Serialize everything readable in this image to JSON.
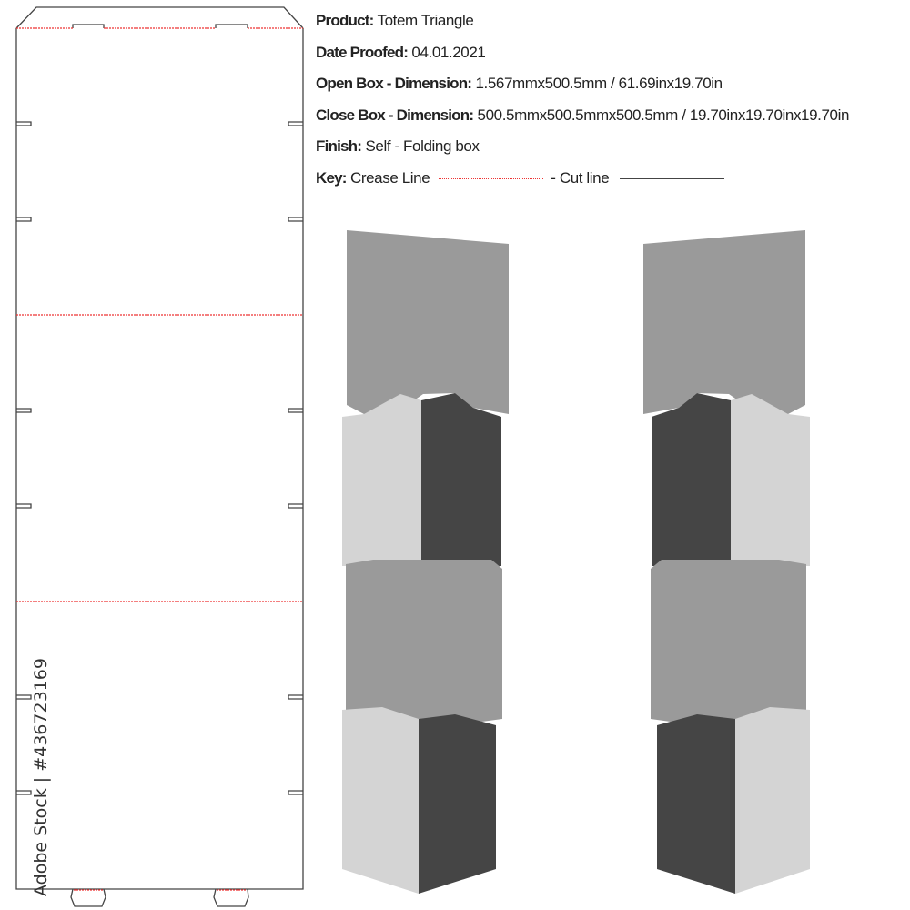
{
  "specs": {
    "product": {
      "label": "Product:",
      "value": "Totem Triangle"
    },
    "date": {
      "label": "Date Proofed:",
      "value": "04.01.2021"
    },
    "open_box": {
      "label": "Open Box - Dimension:",
      "value": "1.567mmx500.5mm / 61.69inx19.70in"
    },
    "close_box": {
      "label": "Close Box - Dimension:",
      "value": "500.5mmx500.5mmx500.5mm / 19.70inx19.70inx19.70in"
    },
    "finish": {
      "label": "Finish:",
      "value": "Self - Folding box"
    },
    "key": {
      "label": "Key:",
      "crease": "Crease Line",
      "cut": "- Cut line"
    }
  },
  "colors": {
    "crease": "#e33333",
    "cut": "#444444",
    "light": "#d4d4d4",
    "medium": "#9a9a9a",
    "dark": "#454545"
  },
  "watermark": "Adobe Stock | #436723169"
}
